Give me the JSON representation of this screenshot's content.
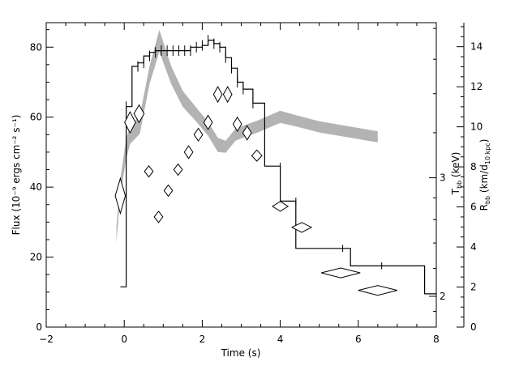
{
  "chart_data": {
    "type": "line",
    "xlabel": "Time (s)",
    "ylabel": "Flux (10⁻⁹ ergs cm⁻² s⁻¹)",
    "y2label": "T",
    "y2label_sub": "bb",
    "y2label_unit": " (keV)",
    "y3label": "R",
    "y3label_sub": "bb",
    "y3label_unit": " (km/d",
    "y3label_unit_sub": "10 kpc",
    "y3label_close": ")",
    "xlim": [
      -2,
      8
    ],
    "ylim": [
      0,
      87
    ],
    "x_ticks": [
      -2,
      0,
      2,
      4,
      6,
      8
    ],
    "y_ticks": [
      0,
      20,
      40,
      60,
      80
    ],
    "y2_ticks": [
      2,
      3
    ],
    "y2_range_keV": [
      1.8,
      5.1
    ],
    "y2_log": true,
    "y3_ticks": [
      0,
      2,
      4,
      6,
      8,
      10,
      12,
      14
    ],
    "y3_range": [
      0,
      15.2
    ],
    "flux_histogram": {
      "edges": [
        -0.1,
        0.05,
        0.2,
        0.35,
        0.5,
        0.65,
        0.8,
        0.95,
        1.1,
        1.25,
        1.4,
        1.55,
        1.7,
        1.85,
        2.0,
        2.15,
        2.3,
        2.45,
        2.6,
        2.75,
        2.9,
        3.05,
        3.3,
        3.6,
        4.0,
        4.4,
        5.0,
        5.8,
        7.7,
        8.0
      ],
      "values": [
        11.5,
        63,
        74.5,
        75.5,
        77.5,
        78.5,
        79,
        79,
        79,
        79,
        79,
        79,
        80,
        80,
        80.5,
        82,
        81,
        80,
        77,
        74,
        70,
        68,
        64,
        46,
        36,
        22.5,
        22.5,
        17.5,
        9.5
      ]
    },
    "flux_error_bars": [
      {
        "x": 0.05,
        "y": 63,
        "err": 1.5
      },
      {
        "x": 0.35,
        "y": 74.5,
        "err": 1.5
      },
      {
        "x": 0.5,
        "y": 75.5,
        "err": 1.5
      },
      {
        "x": 0.65,
        "y": 77.5,
        "err": 1.5
      },
      {
        "x": 0.8,
        "y": 78.5,
        "err": 1.5
      },
      {
        "x": 0.95,
        "y": 79,
        "err": 1.5
      },
      {
        "x": 1.1,
        "y": 79,
        "err": 1.5
      },
      {
        "x": 1.25,
        "y": 79,
        "err": 1.5
      },
      {
        "x": 1.4,
        "y": 79,
        "err": 1.5
      },
      {
        "x": 1.55,
        "y": 79,
        "err": 1.5
      },
      {
        "x": 1.7,
        "y": 79,
        "err": 1.5
      },
      {
        "x": 1.85,
        "y": 80,
        "err": 1.5
      },
      {
        "x": 2.0,
        "y": 80.5,
        "err": 1.5
      },
      {
        "x": 2.15,
        "y": 82,
        "err": 1.5
      },
      {
        "x": 2.3,
        "y": 81,
        "err": 1.5
      },
      {
        "x": 2.45,
        "y": 80,
        "err": 1.5
      },
      {
        "x": 2.6,
        "y": 77,
        "err": 1.5
      },
      {
        "x": 2.75,
        "y": 74,
        "err": 1.5
      },
      {
        "x": 2.9,
        "y": 70,
        "err": 1.5
      },
      {
        "x": 3.05,
        "y": 68,
        "err": 1.5
      },
      {
        "x": 3.3,
        "y": 64,
        "err": 1.5
      },
      {
        "x": 4.0,
        "y": 46,
        "err": 1
      },
      {
        "x": 4.4,
        "y": 36,
        "err": 1
      },
      {
        "x": 5.6,
        "y": 22.5,
        "err": 1
      },
      {
        "x": 6.6,
        "y": 17.5,
        "err": 1
      }
    ],
    "temperature_diamonds": [
      {
        "x": -0.1,
        "y_flux": 37.5,
        "dx": 0.13,
        "dy": 5.0
      },
      {
        "x": 0.15,
        "y_flux": 58.5,
        "dx": 0.14,
        "dy": 3.0
      },
      {
        "x": 0.38,
        "y_flux": 61.0,
        "dx": 0.13,
        "dy": 2.5
      },
      {
        "x": 0.63,
        "y_flux": 44.5,
        "dx": 0.11,
        "dy": 1.6
      },
      {
        "x": 0.88,
        "y_flux": 31.5,
        "dx": 0.11,
        "dy": 1.6
      },
      {
        "x": 1.13,
        "y_flux": 39.0,
        "dx": 0.11,
        "dy": 1.6
      },
      {
        "x": 1.38,
        "y_flux": 45.0,
        "dx": 0.11,
        "dy": 1.6
      },
      {
        "x": 1.65,
        "y_flux": 50.0,
        "dx": 0.11,
        "dy": 1.8
      },
      {
        "x": 1.9,
        "y_flux": 55.0,
        "dx": 0.11,
        "dy": 1.8
      },
      {
        "x": 2.15,
        "y_flux": 58.5,
        "dx": 0.11,
        "dy": 2.0
      },
      {
        "x": 2.4,
        "y_flux": 66.5,
        "dx": 0.11,
        "dy": 2.2
      },
      {
        "x": 2.65,
        "y_flux": 66.5,
        "dx": 0.11,
        "dy": 2.2
      },
      {
        "x": 2.9,
        "y_flux": 58.0,
        "dx": 0.11,
        "dy": 2.0
      },
      {
        "x": 3.15,
        "y_flux": 55.5,
        "dx": 0.11,
        "dy": 2.0
      },
      {
        "x": 3.4,
        "y_flux": 49.0,
        "dx": 0.13,
        "dy": 1.6
      },
      {
        "x": 4.0,
        "y_flux": 34.5,
        "dx": 0.2,
        "dy": 1.4
      },
      {
        "x": 4.55,
        "y_flux": 28.5,
        "dx": 0.25,
        "dy": 1.4
      },
      {
        "x": 5.55,
        "y_flux": 15.5,
        "dx": 0.5,
        "dy": 1.4
      },
      {
        "x": 6.5,
        "y_flux": 10.5,
        "dx": 0.5,
        "dy": 1.4
      }
    ],
    "radius_band": {
      "x": [
        -0.2,
        -0.1,
        0.05,
        0.15,
        0.4,
        0.65,
        0.9,
        1.2,
        1.5,
        1.85,
        2.15,
        2.4,
        2.6,
        2.85,
        3.1,
        3.4,
        3.7,
        4.0,
        4.4,
        5.0,
        5.6,
        6.5
      ],
      "y": [
        4.6,
        7.0,
        8.9,
        9.6,
        10.1,
        12.6,
        14.3,
        12.6,
        11.4,
        10.6,
        9.9,
        9.1,
        9.0,
        9.6,
        9.8,
        10.0,
        10.25,
        10.5,
        10.3,
        10.0,
        9.8,
        9.5
      ],
      "halfwidth": [
        0.4,
        0.4,
        0.5,
        0.45,
        0.45,
        0.45,
        0.55,
        0.45,
        0.4,
        0.35,
        0.35,
        0.35,
        0.3,
        0.3,
        0.3,
        0.3,
        0.3,
        0.3,
        0.28,
        0.28,
        0.28,
        0.28
      ]
    },
    "color_band": "#b3b3b3",
    "color_line": "#000000",
    "grid": false
  }
}
